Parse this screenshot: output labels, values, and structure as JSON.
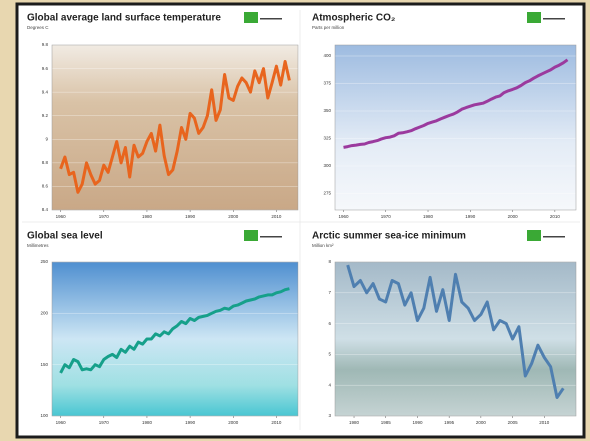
{
  "chart_data": [
    {
      "type": "line",
      "title": "Global average land surface temperature",
      "subtitle": "Degrees C",
      "x": [
        1960,
        1961,
        1962,
        1963,
        1964,
        1965,
        1966,
        1967,
        1968,
        1969,
        1970,
        1971,
        1972,
        1973,
        1974,
        1975,
        1976,
        1977,
        1978,
        1979,
        1980,
        1981,
        1982,
        1983,
        1984,
        1985,
        1986,
        1987,
        1988,
        1989,
        1990,
        1991,
        1992,
        1993,
        1994,
        1995,
        1996,
        1997,
        1998,
        1999,
        2000,
        2001,
        2002,
        2003,
        2004,
        2005,
        2006,
        2007,
        2008,
        2009,
        2010,
        2011,
        2012,
        2013
      ],
      "values": [
        8.75,
        8.85,
        8.7,
        8.72,
        8.55,
        8.62,
        8.8,
        8.7,
        8.62,
        8.65,
        8.78,
        8.72,
        8.85,
        8.98,
        8.8,
        8.93,
        8.68,
        8.95,
        8.85,
        8.88,
        8.98,
        9.05,
        8.9,
        9.12,
        8.86,
        8.7,
        8.74,
        8.9,
        9.1,
        9.0,
        9.22,
        9.18,
        9.05,
        9.1,
        9.2,
        9.42,
        9.16,
        9.25,
        9.55,
        9.35,
        9.33,
        9.45,
        9.52,
        9.48,
        9.4,
        9.58,
        9.48,
        9.6,
        9.35,
        9.48,
        9.62,
        9.46,
        9.66,
        9.5
      ],
      "color": "#e8651e",
      "xlim": [
        1958,
        2015
      ],
      "xticks": [
        1960,
        1970,
        1980,
        1990,
        2000,
        2010
      ],
      "ylim": [
        8.4,
        9.8
      ],
      "yticks": [
        8.4,
        8.6,
        8.8,
        9.0,
        9.2,
        9.4,
        9.6,
        9.8
      ],
      "grid": true
    },
    {
      "type": "line",
      "title": "Atmospheric CO₂",
      "subtitle": "Parts per million",
      "x": [
        1960,
        1961,
        1962,
        1963,
        1964,
        1965,
        1966,
        1967,
        1968,
        1969,
        1970,
        1971,
        1972,
        1973,
        1974,
        1975,
        1976,
        1977,
        1978,
        1979,
        1980,
        1981,
        1982,
        1983,
        1984,
        1985,
        1986,
        1987,
        1988,
        1989,
        1990,
        1991,
        1992,
        1993,
        1994,
        1995,
        1996,
        1997,
        1998,
        1999,
        2000,
        2001,
        2002,
        2003,
        2004,
        2005,
        2006,
        2007,
        2008,
        2009,
        2010,
        2011,
        2012,
        2013
      ],
      "values": [
        316.9,
        317.6,
        318.5,
        319.0,
        319.6,
        320.0,
        321.4,
        322.2,
        323.1,
        324.6,
        325.7,
        326.3,
        327.5,
        329.7,
        330.2,
        331.1,
        332.1,
        333.8,
        335.4,
        336.8,
        338.7,
        339.9,
        341.1,
        342.8,
        344.4,
        345.9,
        347.2,
        349.2,
        351.6,
        353.1,
        354.4,
        355.6,
        356.4,
        357.1,
        358.8,
        360.8,
        362.6,
        363.7,
        366.7,
        368.4,
        369.6,
        371.1,
        373.2,
        375.8,
        377.5,
        379.8,
        381.9,
        383.8,
        385.6,
        387.4,
        389.9,
        391.6,
        393.8,
        396.5
      ],
      "color": "#9b3a9e",
      "xlim": [
        1958,
        2015
      ],
      "xticks": [
        1960,
        1970,
        1980,
        1990,
        2000,
        2010
      ],
      "ylim": [
        260,
        410
      ],
      "yticks": [
        275,
        300,
        325,
        350,
        375,
        400
      ],
      "grid": true
    },
    {
      "type": "line",
      "title": "Global sea level",
      "subtitle": "Millimetres",
      "x": [
        1960,
        1961,
        1962,
        1963,
        1964,
        1965,
        1966,
        1967,
        1968,
        1969,
        1970,
        1971,
        1972,
        1973,
        1974,
        1975,
        1976,
        1977,
        1978,
        1979,
        1980,
        1981,
        1982,
        1983,
        1984,
        1985,
        1986,
        1987,
        1988,
        1989,
        1990,
        1991,
        1992,
        1993,
        1994,
        1995,
        1996,
        1997,
        1998,
        1999,
        2000,
        2001,
        2002,
        2003,
        2004,
        2005,
        2006,
        2007,
        2008,
        2009,
        2010,
        2011,
        2012,
        2013
      ],
      "values": [
        142,
        150,
        147,
        155,
        153,
        145,
        146,
        145,
        150,
        148,
        155,
        158,
        160,
        157,
        165,
        162,
        168,
        165,
        172,
        170,
        175,
        175,
        180,
        178,
        182,
        180,
        185,
        188,
        192,
        190,
        195,
        193,
        196,
        197,
        198,
        200,
        202,
        203,
        205,
        204,
        207,
        208,
        210,
        212,
        213,
        214,
        216,
        217,
        218,
        218,
        220,
        221,
        223,
        224
      ],
      "color": "#16a08a",
      "xlim": [
        1958,
        2015
      ],
      "xticks": [
        1960,
        1970,
        1980,
        1990,
        2000,
        2010
      ],
      "ylim": [
        100,
        250
      ],
      "yticks": [
        100,
        150,
        200,
        250
      ],
      "grid": true
    },
    {
      "type": "line",
      "title": "Arctic summer sea-ice minimum",
      "subtitle": "Million km²",
      "x": [
        1979,
        1980,
        1981,
        1982,
        1983,
        1984,
        1985,
        1986,
        1987,
        1988,
        1989,
        1990,
        1991,
        1992,
        1993,
        1994,
        1995,
        1996,
        1997,
        1998,
        1999,
        2000,
        2001,
        2002,
        2003,
        2004,
        2005,
        2006,
        2007,
        2008,
        2009,
        2010,
        2011,
        2012,
        2013
      ],
      "values": [
        7.9,
        7.2,
        7.4,
        7.0,
        7.3,
        6.8,
        6.7,
        7.4,
        7.3,
        6.6,
        7.0,
        6.1,
        6.5,
        7.5,
        6.4,
        7.1,
        6.1,
        7.6,
        6.7,
        6.5,
        6.1,
        6.3,
        6.7,
        5.8,
        6.1,
        6.0,
        5.5,
        5.9,
        4.3,
        4.7,
        5.3,
        4.9,
        4.6,
        3.6,
        3.9
      ],
      "color": "#4f7fb0",
      "xlim": [
        1977,
        2015
      ],
      "xticks": [
        1980,
        1985,
        1990,
        1995,
        2000,
        2005,
        2010
      ],
      "ylim": [
        3,
        8
      ],
      "yticks": [
        3,
        4,
        5,
        6,
        7,
        8
      ],
      "grid": true
    }
  ]
}
